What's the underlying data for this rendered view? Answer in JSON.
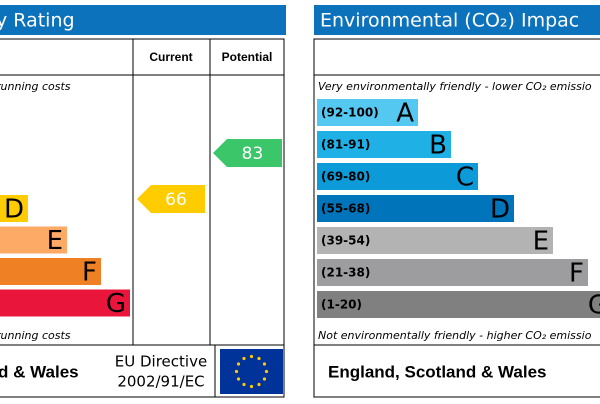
{
  "energy": {
    "title": "y Rating",
    "current_label": "Current",
    "potential_label": "Potential",
    "top_note": "running costs",
    "bottom_note": "running costs",
    "footer": "d & Wales",
    "directive": [
      "EU Directive",
      "2002/91/EC"
    ],
    "bands": [
      {
        "letter": "D",
        "color": "#ffcc00"
      },
      {
        "letter": "E",
        "color": "#fcaa65"
      },
      {
        "letter": "F",
        "color": "#ef8023"
      },
      {
        "letter": "G",
        "color": "#e9153b"
      }
    ],
    "current": {
      "value": 66,
      "color": "#ffcc00"
    },
    "potential": {
      "value": 83,
      "color": "#3cc66a"
    }
  },
  "co2": {
    "title": "Environmental (CO₂) Impac",
    "top_note": "Very environmentally friendly - lower CO₂ emissio",
    "bottom_note": "Not environmentally friendly - higher CO₂ emissio",
    "footer": "England, Scotland & Wales",
    "bands": [
      {
        "range": "(92-100)",
        "letter": "A",
        "color": "#55c8f2"
      },
      {
        "range": "(81-91)",
        "letter": "B",
        "color": "#1fb0e6"
      },
      {
        "range": "(69-80)",
        "letter": "C",
        "color": "#0d9ad8"
      },
      {
        "range": "(55-68)",
        "letter": "D",
        "color": "#0074bb"
      },
      {
        "range": "(39-54)",
        "letter": "E",
        "color": "#b3b3b3"
      },
      {
        "range": "(21-38)",
        "letter": "F",
        "color": "#9d9d9f"
      },
      {
        "range": "(1-20)",
        "letter": "G",
        "color": "#808080"
      }
    ]
  }
}
